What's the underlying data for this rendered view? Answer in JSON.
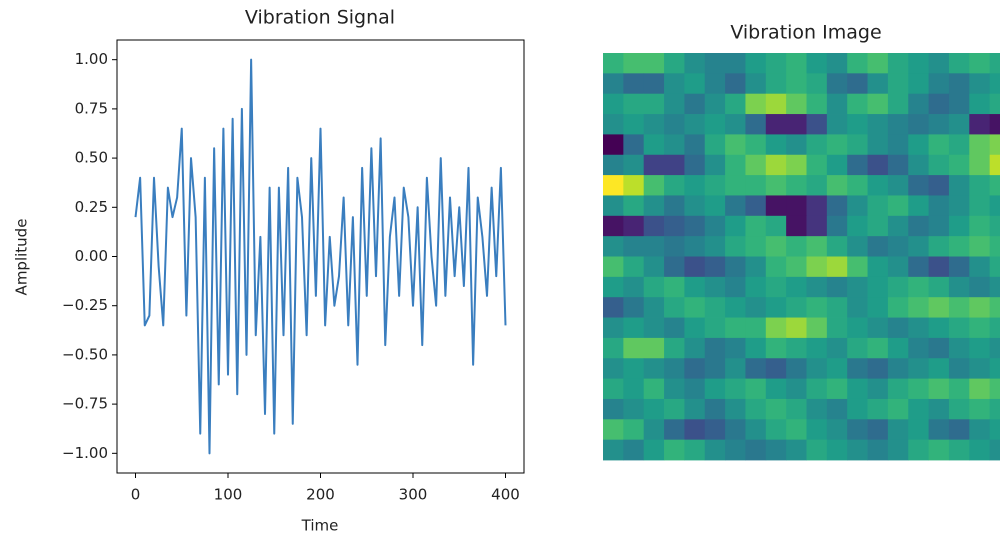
{
  "chart_data": [
    {
      "type": "line",
      "title": "Vibration Signal",
      "xlabel": "Time",
      "ylabel": "Amplitude",
      "color": "#3a7ebf",
      "x": [
        0,
        5,
        10,
        15,
        20,
        25,
        30,
        35,
        40,
        45,
        50,
        55,
        60,
        65,
        70,
        75,
        80,
        85,
        90,
        95,
        100,
        105,
        110,
        115,
        120,
        125,
        130,
        135,
        140,
        145,
        150,
        155,
        160,
        165,
        170,
        175,
        180,
        185,
        190,
        195,
        200,
        205,
        210,
        215,
        220,
        225,
        230,
        235,
        240,
        245,
        250,
        255,
        260,
        265,
        270,
        275,
        280,
        285,
        290,
        295,
        300,
        305,
        310,
        315,
        320,
        325,
        330,
        335,
        340,
        345,
        350,
        355,
        360,
        365,
        370,
        375,
        380,
        385,
        390,
        395,
        400
      ],
      "values": [
        0.2,
        0.4,
        -0.35,
        -0.3,
        0.4,
        -0.05,
        -0.35,
        0.35,
        0.2,
        0.3,
        0.65,
        -0.3,
        0.5,
        0.2,
        -0.9,
        0.4,
        -1.0,
        0.55,
        -0.65,
        0.65,
        -0.6,
        0.7,
        -0.7,
        0.75,
        -0.5,
        1.0,
        -0.4,
        0.1,
        -0.8,
        0.35,
        -0.9,
        0.35,
        -0.4,
        0.45,
        -0.85,
        0.4,
        0.2,
        -0.4,
        0.5,
        -0.2,
        0.65,
        -0.35,
        0.1,
        -0.25,
        -0.1,
        0.3,
        -0.35,
        0.2,
        -0.55,
        0.45,
        -0.2,
        0.55,
        -0.1,
        0.6,
        -0.45,
        0.1,
        0.3,
        -0.2,
        0.35,
        0.2,
        -0.25,
        0.25,
        -0.45,
        0.4,
        0.0,
        -0.25,
        0.5,
        -0.2,
        0.3,
        -0.1,
        0.25,
        -0.15,
        0.45,
        -0.55,
        0.3,
        0.1,
        -0.2,
        0.35,
        -0.1,
        0.45,
        -0.35
      ],
      "xlim": [
        -20,
        420
      ],
      "ylim": [
        -1.1,
        1.1
      ],
      "xticks": [
        0,
        100,
        200,
        300,
        400
      ],
      "yticks": [
        {
          "value": 1,
          "label": "1.00"
        },
        {
          "value": 0.75,
          "label": "0.75"
        },
        {
          "value": 0.5,
          "label": "0.50"
        },
        {
          "value": 0.25,
          "label": "0.25"
        },
        {
          "value": 0,
          "label": "0.00"
        },
        {
          "value": -0.25,
          "label": "−0.25"
        },
        {
          "value": -0.5,
          "label": "−0.50"
        },
        {
          "value": -0.75,
          "label": "−0.75"
        },
        {
          "value": -1,
          "label": "−1.00"
        }
      ]
    },
    {
      "type": "heatmap",
      "title": "Vibration Image",
      "colormap": "viridis",
      "zlim": [
        -1,
        1
      ],
      "values": [
        [
          0.3,
          0.4,
          0.4,
          0.2,
          0.0,
          -0.1,
          -0.1,
          0.1,
          0.2,
          0.3,
          0.1,
          0.0,
          0.3,
          0.4,
          0.2,
          0.1,
          0.0,
          0.2,
          0.3,
          0.2
        ],
        [
          -0.1,
          -0.3,
          -0.3,
          0.0,
          0.1,
          -0.1,
          -0.3,
          0.0,
          0.2,
          0.3,
          0.2,
          -0.2,
          -0.3,
          0.0,
          0.2,
          0.1,
          -0.1,
          -0.2,
          0.0,
          0.1
        ],
        [
          0.1,
          0.2,
          0.2,
          0.0,
          -0.2,
          0.0,
          0.2,
          0.6,
          0.7,
          0.5,
          0.3,
          0.0,
          0.3,
          0.4,
          0.2,
          -0.1,
          -0.3,
          -0.2,
          0.1,
          0.2
        ],
        [
          0.0,
          0.1,
          0.0,
          -0.1,
          0.0,
          0.1,
          0.0,
          -0.3,
          -0.8,
          -0.8,
          -0.5,
          0.0,
          0.1,
          0.0,
          -0.1,
          -0.2,
          -0.1,
          0.0,
          -0.8,
          -0.9
        ],
        [
          -1.0,
          -0.3,
          0.1,
          0.0,
          -0.2,
          0.2,
          0.4,
          0.3,
          0.1,
          0.0,
          0.2,
          0.3,
          0.2,
          0.0,
          -0.1,
          0.1,
          0.3,
          0.2,
          0.5,
          0.6
        ],
        [
          -0.1,
          0.0,
          -0.6,
          -0.6,
          -0.3,
          0.0,
          0.3,
          0.5,
          0.7,
          0.6,
          0.3,
          0.1,
          -0.3,
          -0.5,
          -0.3,
          0.0,
          0.2,
          0.3,
          0.5,
          0.8
        ],
        [
          1.0,
          0.8,
          0.4,
          0.2,
          0.1,
          0.2,
          0.3,
          0.3,
          0.4,
          0.3,
          0.2,
          0.4,
          0.3,
          0.1,
          0.0,
          -0.3,
          -0.4,
          0.0,
          0.2,
          0.3
        ],
        [
          0.0,
          0.2,
          0.0,
          -0.2,
          0.0,
          0.1,
          -0.2,
          -0.4,
          -0.9,
          -0.9,
          -0.7,
          -0.3,
          0.0,
          0.2,
          0.3,
          0.1,
          -0.1,
          0.0,
          0.2,
          0.1
        ],
        [
          -0.9,
          -0.8,
          -0.5,
          -0.4,
          -0.3,
          -0.1,
          0.1,
          0.3,
          0.2,
          -0.9,
          -0.7,
          -0.2,
          0.1,
          0.2,
          0.0,
          -0.2,
          -0.1,
          0.1,
          0.3,
          0.2
        ],
        [
          0.0,
          -0.1,
          -0.1,
          -0.2,
          -0.1,
          0.0,
          0.2,
          0.3,
          0.4,
          0.3,
          0.4,
          0.2,
          0.0,
          -0.2,
          -0.1,
          0.0,
          0.2,
          0.3,
          0.4,
          0.3
        ],
        [
          0.4,
          0.2,
          0.0,
          -0.3,
          -0.5,
          -0.4,
          -0.2,
          0.0,
          0.3,
          0.4,
          0.6,
          0.7,
          0.4,
          0.1,
          0.0,
          -0.3,
          -0.5,
          -0.3,
          0.0,
          0.2
        ],
        [
          0.1,
          0.0,
          0.2,
          0.3,
          0.1,
          0.0,
          -0.1,
          0.1,
          0.2,
          0.1,
          0.0,
          -0.1,
          0.0,
          0.1,
          0.2,
          0.3,
          0.2,
          0.0,
          -0.1,
          0.0
        ],
        [
          -0.4,
          -0.2,
          0.0,
          0.2,
          0.3,
          0.2,
          0.1,
          0.0,
          0.1,
          0.2,
          0.3,
          0.2,
          0.0,
          0.1,
          0.3,
          0.4,
          0.5,
          0.4,
          0.5,
          0.4
        ],
        [
          0.0,
          0.1,
          0.0,
          -0.1,
          0.1,
          0.2,
          0.3,
          0.3,
          0.6,
          0.7,
          0.5,
          0.2,
          0.1,
          0.0,
          -0.1,
          0.0,
          0.1,
          0.2,
          0.3,
          0.2
        ],
        [
          0.2,
          0.5,
          0.5,
          0.2,
          0.0,
          -0.2,
          -0.1,
          0.1,
          0.3,
          0.2,
          0.1,
          0.0,
          0.2,
          0.3,
          0.1,
          -0.1,
          -0.2,
          0.0,
          0.1,
          0.0
        ],
        [
          0.0,
          0.1,
          0.0,
          -0.1,
          -0.3,
          -0.2,
          0.0,
          -0.3,
          -0.4,
          -0.2,
          0.0,
          0.1,
          -0.2,
          -0.3,
          -0.1,
          0.0,
          0.1,
          -0.1,
          0.0,
          0.1
        ],
        [
          0.2,
          0.1,
          0.3,
          0.0,
          -0.1,
          0.1,
          0.2,
          0.3,
          0.1,
          0.0,
          0.2,
          0.3,
          0.1,
          0.0,
          0.2,
          0.3,
          0.4,
          0.3,
          0.5,
          0.4
        ],
        [
          -0.1,
          0.0,
          0.1,
          0.2,
          0.0,
          -0.2,
          0.0,
          0.2,
          0.3,
          0.2,
          0.0,
          -0.1,
          0.1,
          0.2,
          0.3,
          0.1,
          0.0,
          0.2,
          0.3,
          0.2
        ],
        [
          0.4,
          0.3,
          0.0,
          -0.3,
          -0.5,
          -0.4,
          -0.2,
          0.0,
          0.2,
          0.3,
          0.1,
          0.0,
          -0.2,
          -0.3,
          0.0,
          0.1,
          -0.2,
          -0.3,
          0.0,
          0.1
        ],
        [
          0.0,
          -0.1,
          0.1,
          0.3,
          0.2,
          0.0,
          -0.1,
          -0.2,
          -0.1,
          0.0,
          0.2,
          0.1,
          0.0,
          -0.1,
          0.0,
          0.2,
          0.3,
          0.2,
          0.1,
          0.0
        ]
      ]
    }
  ]
}
